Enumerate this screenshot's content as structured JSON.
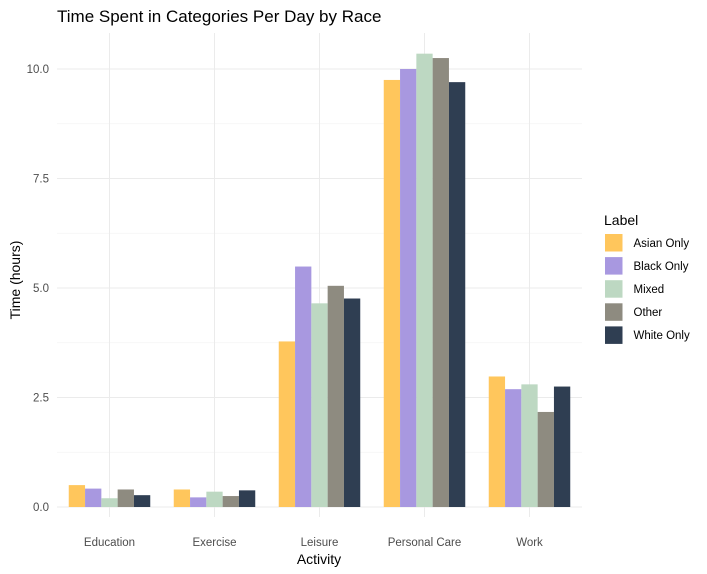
{
  "chart_data": {
    "type": "bar",
    "title": "Time Spent in Categories Per Day by Race",
    "xlabel": "Activity",
    "ylabel": "Time (hours)",
    "categories": [
      "Education",
      "Exercise",
      "Leisure",
      "Personal Care",
      "Work"
    ],
    "ylim": [
      0,
      10.8
    ],
    "yticks": [
      0,
      2.5,
      5,
      7.5,
      10
    ],
    "ytick_labels": [
      "0.0",
      "2.5",
      "5.0",
      "7.5",
      "10.0"
    ],
    "grid": true,
    "legend": {
      "title": "Label",
      "position": "right"
    },
    "series": [
      {
        "name": "Asian Only",
        "color": "#ffc65c",
        "values": [
          0.5,
          0.4,
          3.78,
          9.75,
          2.98
        ]
      },
      {
        "name": "Black Only",
        "color": "#a898e0",
        "values": [
          0.42,
          0.22,
          5.49,
          10.0,
          2.69
        ]
      },
      {
        "name": "Mixed",
        "color": "#bdd8c2",
        "values": [
          0.2,
          0.35,
          4.65,
          10.35,
          2.8
        ]
      },
      {
        "name": "Other",
        "color": "#8e8b80",
        "values": [
          0.4,
          0.25,
          5.05,
          10.25,
          2.17
        ]
      },
      {
        "name": "White Only",
        "color": "#2f3e52",
        "values": [
          0.27,
          0.38,
          4.76,
          9.7,
          2.75
        ]
      }
    ]
  }
}
